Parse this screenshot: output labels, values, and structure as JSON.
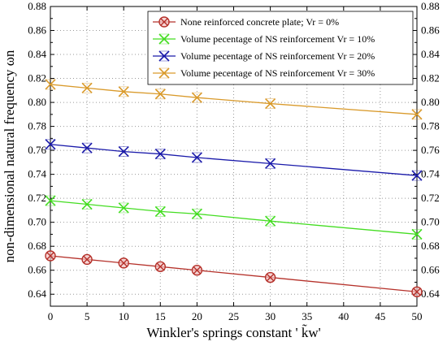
{
  "chart_data": {
    "type": "line",
    "xlabel": "Winkler's springs constant ' k̃w'",
    "ylabel": "non-dimensional natural frequency ωn",
    "xlim": [
      0,
      50
    ],
    "ylim": [
      0.63,
      0.88
    ],
    "x_ticks": [
      "0",
      "5",
      "10",
      "15",
      "20",
      "25",
      "30",
      "35",
      "40",
      "45",
      "50"
    ],
    "y_ticks": [
      "0.64",
      "0.66",
      "0.68",
      "0.70",
      "0.72",
      "0.74",
      "0.76",
      "0.78",
      "0.80",
      "0.82",
      "0.84",
      "0.86",
      "0.88"
    ],
    "grid": true,
    "legend_position": "top-right",
    "x": [
      0,
      5,
      10,
      15,
      20,
      30,
      50
    ],
    "series": [
      {
        "name": "None reinforced concrete plate; Vr = 0%",
        "color": "#b5312a",
        "marker": "circle-x",
        "values": [
          0.672,
          0.669,
          0.666,
          0.663,
          0.66,
          0.654,
          0.642
        ]
      },
      {
        "name": "Volume pecentage of NS reinforcement Vr = 10%",
        "color": "#44dd22",
        "marker": "x",
        "values": [
          0.718,
          0.715,
          0.712,
          0.709,
          0.707,
          0.701,
          0.69
        ]
      },
      {
        "name": "Volume pecentage of NS reinforcement Vr = 20%",
        "color": "#1a1aaa",
        "marker": "x",
        "values": [
          0.765,
          0.762,
          0.759,
          0.757,
          0.754,
          0.749,
          0.739
        ]
      },
      {
        "name": "Volume pecentage of NS reinforcement Vr = 30%",
        "color": "#d99a2b",
        "marker": "x",
        "values": [
          0.815,
          0.812,
          0.809,
          0.807,
          0.804,
          0.799,
          0.79
        ]
      }
    ]
  }
}
